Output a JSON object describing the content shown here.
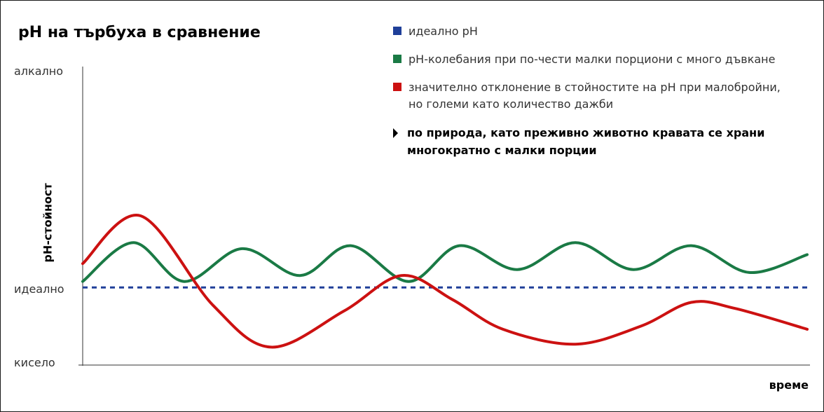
{
  "chart_data": {
    "type": "line",
    "title": "pH на търбуха в сравнение",
    "ylabel": "pH-стойност",
    "xlabel": "време",
    "y_tick_labels": [
      "алкално",
      "идеално",
      "кисело"
    ],
    "ylim": [
      0,
      10
    ],
    "xlim": [
      0,
      100
    ],
    "grid": false,
    "legend_position": "top-right",
    "series": [
      {
        "name": "идеално pH",
        "color": "#1f3f99",
        "style": "dashed",
        "points": [
          [
            0,
            2.6
          ],
          [
            100,
            2.6
          ]
        ]
      },
      {
        "name": "pH-колебания при по-чести малки порциони с много дъвкане",
        "color": "#1a7a45",
        "style": "solid",
        "points": [
          [
            0,
            2.8
          ],
          [
            7,
            4.1
          ],
          [
            14,
            2.8
          ],
          [
            22,
            3.9
          ],
          [
            30,
            3.0
          ],
          [
            37,
            4.0
          ],
          [
            45,
            2.8
          ],
          [
            52,
            4.0
          ],
          [
            60,
            3.2
          ],
          [
            68,
            4.1
          ],
          [
            76,
            3.2
          ],
          [
            84,
            4.0
          ],
          [
            92,
            3.1
          ],
          [
            100,
            3.7
          ]
        ]
      },
      {
        "name": "значително отклонение в стойностите на pH при малобройни, но големи като количество дажби",
        "color": "#cc1111",
        "style": "solid",
        "points": [
          [
            0,
            3.4
          ],
          [
            8,
            5.0
          ],
          [
            18,
            2.0
          ],
          [
            26,
            0.6
          ],
          [
            36,
            1.8
          ],
          [
            44,
            3.0
          ],
          [
            51,
            2.2
          ],
          [
            58,
            1.2
          ],
          [
            68,
            0.7
          ],
          [
            77,
            1.3
          ],
          [
            84,
            2.1
          ],
          [
            90,
            1.9
          ],
          [
            100,
            1.2
          ]
        ]
      }
    ],
    "annotation": "по природа, като преживно животно кравата се храни многократно с малки порции",
    "colors": {
      "ideal": "#1f3f99",
      "frequent": "#1a7a45",
      "deviation": "#cc1111"
    }
  }
}
